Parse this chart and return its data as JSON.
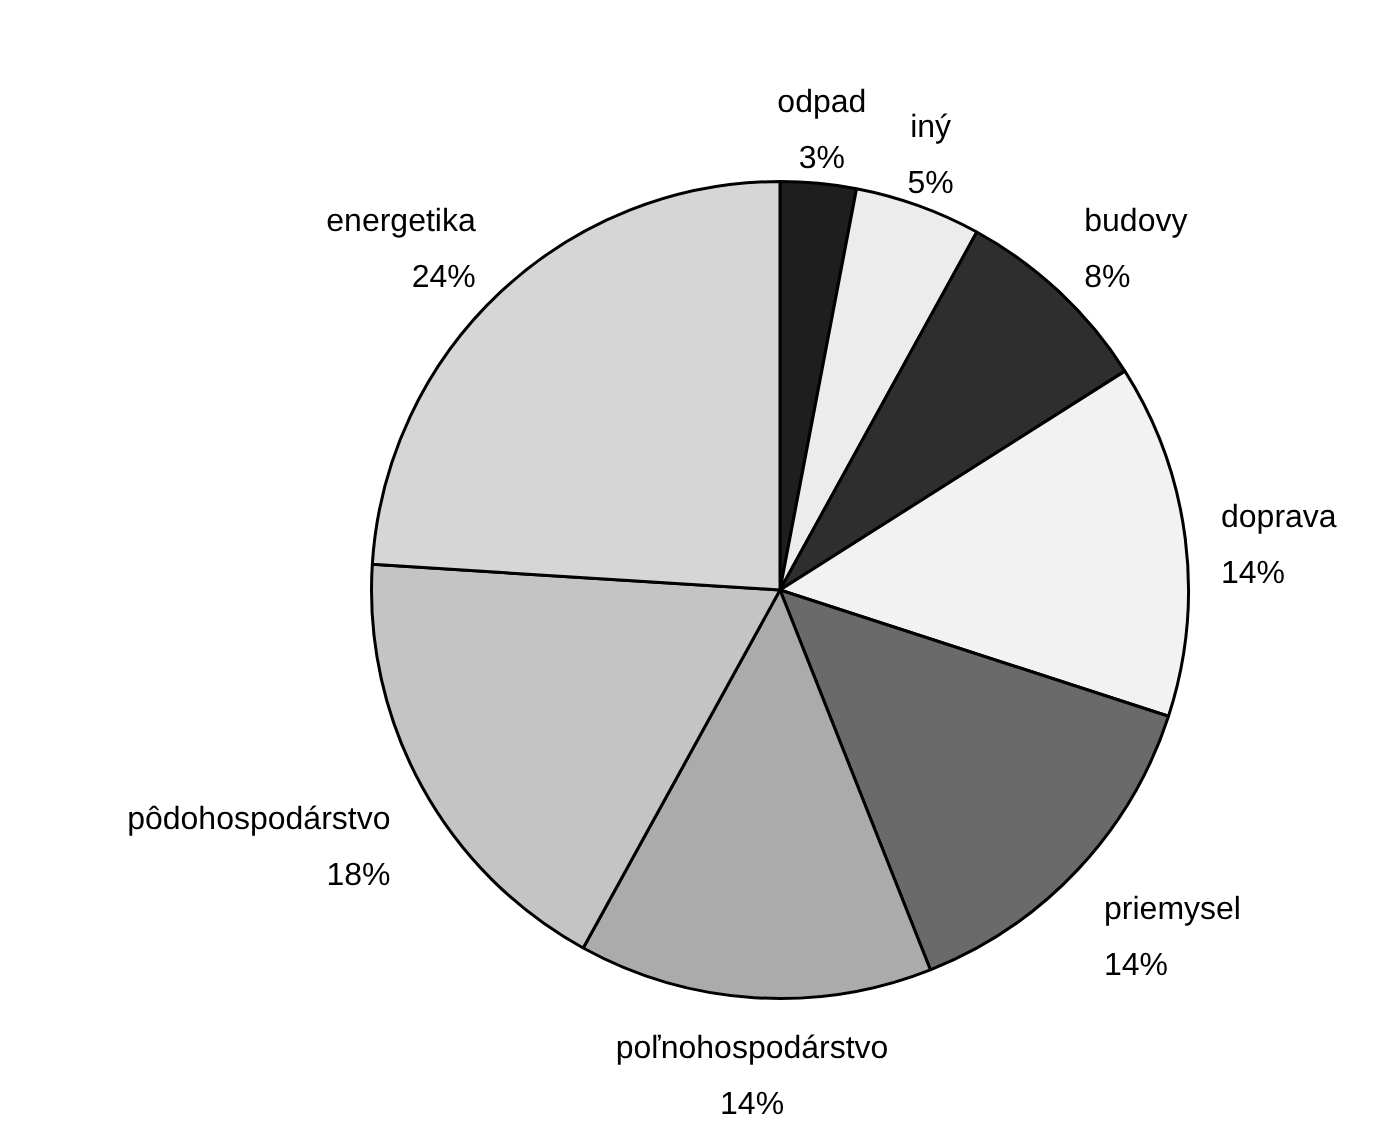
{
  "chart_data": {
    "type": "pie",
    "categories": [
      "odpad",
      "iný",
      "budovy",
      "doprava",
      "priemysel",
      "poľnohospodárstvo",
      "pôdohospodárstvo",
      "energetika"
    ],
    "values": [
      3,
      5,
      8,
      14,
      14,
      14,
      18,
      24
    ],
    "value_labels": [
      "3%",
      "5%",
      "8%",
      "14%",
      "14%",
      "14%",
      "18%",
      "24%"
    ],
    "colors": [
      "#1e1e1e",
      "#ececec",
      "#2e2e2e",
      "#f2f2f2",
      "#6a6a6a",
      "#ababab",
      "#c4c4c4",
      "#d6d6d6"
    ],
    "legend": false
  }
}
